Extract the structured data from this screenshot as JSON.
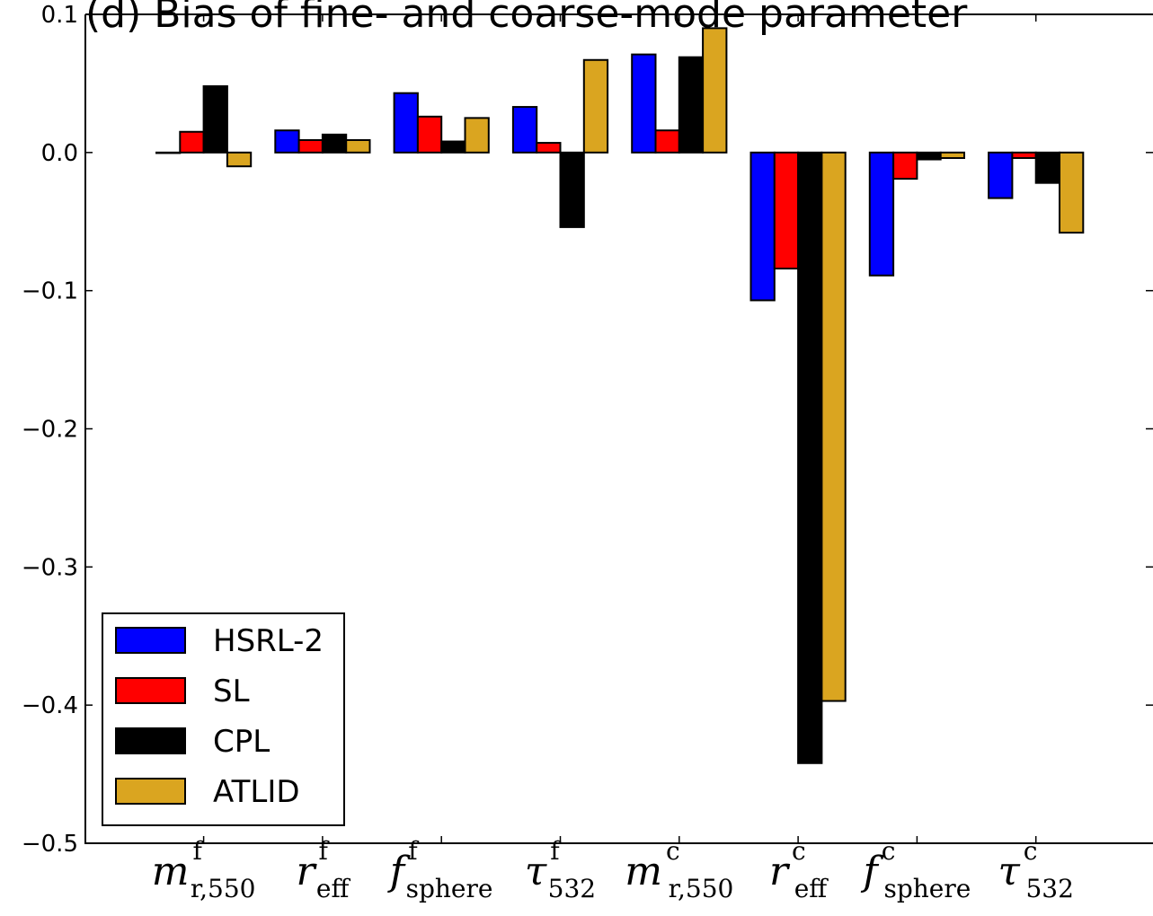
{
  "chart_data": {
    "type": "bar",
    "title": "(d) Bias of fine- and coarse-mode parameter",
    "xlabel": "",
    "ylabel": "",
    "ylim": [
      -0.5,
      0.1
    ],
    "yticks": [
      "0.1",
      "0.0",
      "−0.1",
      "−0.2",
      "−0.3",
      "−0.4",
      "−0.5"
    ],
    "categories": [
      {
        "symbol": "m",
        "sub": "r,550",
        "sup": "f"
      },
      {
        "symbol": "r",
        "sub": "eff",
        "sup": "f"
      },
      {
        "symbol": "f",
        "sub": "sphere",
        "sup": "f"
      },
      {
        "symbol": "τ",
        "sub": "532",
        "sup": "f"
      },
      {
        "symbol": "m",
        "sub": "r,550",
        "sup": "c"
      },
      {
        "symbol": "r",
        "sub": "eff",
        "sup": "c"
      },
      {
        "symbol": "f",
        "sub": "sphere",
        "sup": "c"
      },
      {
        "symbol": "τ",
        "sub": "532",
        "sup": "c"
      }
    ],
    "series": [
      {
        "name": "HSRL-2",
        "color": "#0000ff",
        "values": [
          0.0,
          0.016,
          0.043,
          0.033,
          0.071,
          -0.107,
          -0.089,
          -0.033
        ]
      },
      {
        "name": "SL",
        "color": "#ff0000",
        "values": [
          0.015,
          0.009,
          0.026,
          0.007,
          0.016,
          -0.084,
          -0.019,
          -0.004
        ]
      },
      {
        "name": "CPL",
        "color": "#000000",
        "values": [
          0.048,
          0.013,
          0.008,
          -0.054,
          0.069,
          -0.442,
          -0.005,
          -0.022
        ]
      },
      {
        "name": "ATLID",
        "color": "#daa520",
        "values": [
          -0.01,
          0.009,
          0.025,
          0.067,
          0.09,
          -0.397,
          -0.004,
          -0.058
        ]
      }
    ],
    "legend": {
      "position": "lower-left",
      "entries": [
        "HSRL-2",
        "SL",
        "CPL",
        "ATLID"
      ]
    },
    "grid": false
  }
}
